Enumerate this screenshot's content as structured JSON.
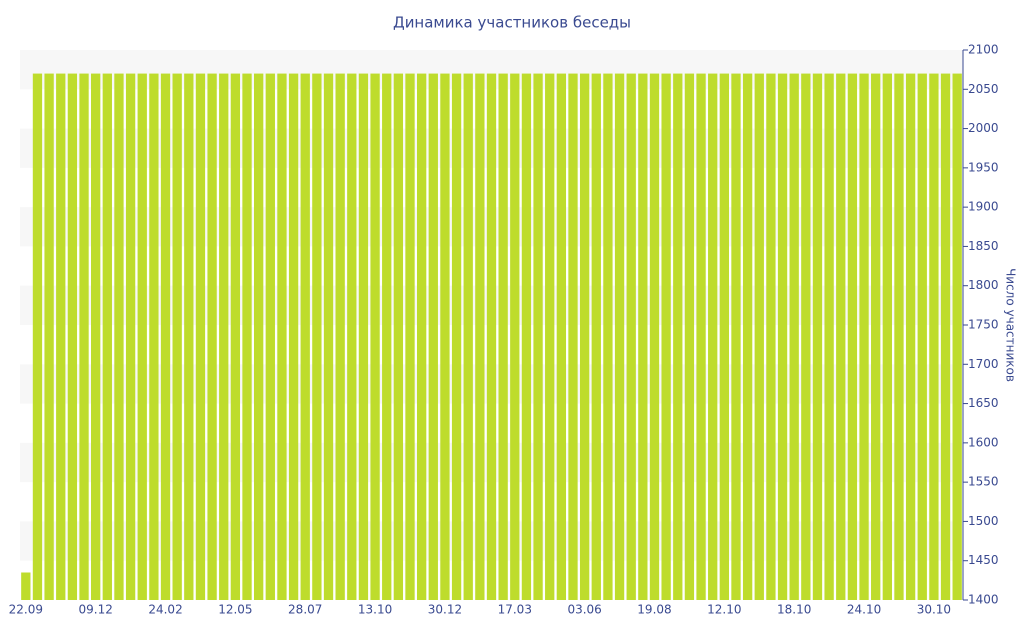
{
  "chart_data": {
    "type": "bar",
    "title": "Динамика участников беседы",
    "y_axis_label": "Число участников",
    "categories": [
      "22.09",
      null,
      null,
      null,
      null,
      null,
      "09.12",
      null,
      null,
      null,
      null,
      null,
      "24.02",
      null,
      null,
      null,
      null,
      null,
      "12.05",
      null,
      null,
      null,
      null,
      null,
      "28.07",
      null,
      null,
      null,
      null,
      null,
      "13.10",
      null,
      null,
      null,
      null,
      null,
      "30.12",
      null,
      null,
      null,
      null,
      null,
      "17.03",
      null,
      null,
      null,
      null,
      null,
      "03.06",
      null,
      null,
      null,
      null,
      null,
      "19.08",
      null,
      null,
      null,
      null,
      null,
      "12.10",
      null,
      null,
      null,
      null,
      null,
      "18.10",
      null,
      null,
      null,
      null,
      null,
      "24.10",
      null,
      null,
      null,
      null,
      null,
      "30.10",
      null,
      null
    ],
    "values": [
      1435,
      2070,
      2070,
      2070,
      2070,
      2070,
      2070,
      2070,
      2070,
      2070,
      2070,
      2070,
      2070,
      2070,
      2070,
      2070,
      2070,
      2070,
      2070,
      2070,
      2070,
      2070,
      2070,
      2070,
      2070,
      2070,
      2070,
      2070,
      2070,
      2070,
      2070,
      2070,
      2070,
      2070,
      2070,
      2070,
      2070,
      2070,
      2070,
      2070,
      2070,
      2070,
      2070,
      2070,
      2070,
      2070,
      2070,
      2070,
      2070,
      2070,
      2070,
      2070,
      2070,
      2070,
      2070,
      2070,
      2070,
      2070,
      2070,
      2070,
      2070,
      2070,
      2070,
      2070,
      2070,
      2070,
      2070,
      2070,
      2070,
      2070,
      2070,
      2070,
      2070,
      2070,
      2070,
      2070,
      2070,
      2070,
      2070,
      2070,
      2070
    ],
    "color": "#bedc2c",
    "ylim": [
      1400,
      2100
    ],
    "yticks": [
      1400,
      1450,
      1500,
      1550,
      1600,
      1650,
      1700,
      1750,
      1800,
      1850,
      1900,
      1950,
      2000,
      2050,
      2100
    ],
    "y_axis_side": "right",
    "grid_bands": true
  }
}
